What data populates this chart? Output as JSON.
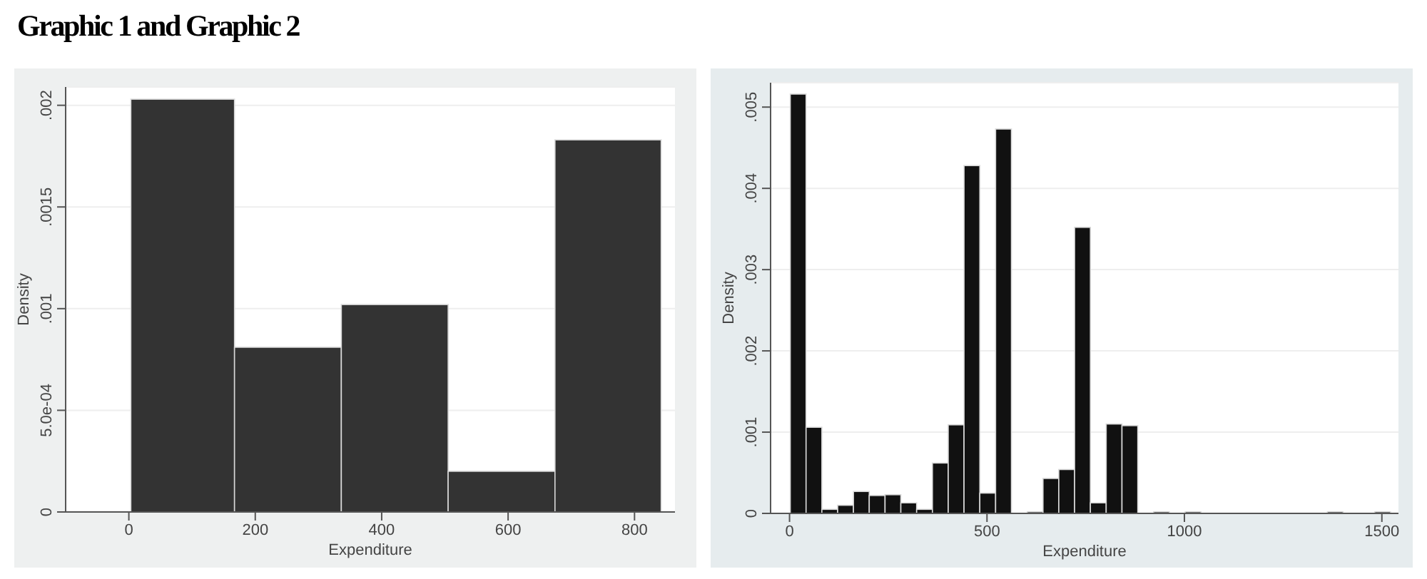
{
  "chart_data": [
    {
      "type": "histogram",
      "title": "Graphic 1 and Graphic 2",
      "xlabel": "Expenditure",
      "ylabel": "Density",
      "color": "#333333",
      "bins": [
        4,
        168,
        337,
        506,
        675,
        843
      ],
      "values": [
        0.00203,
        0.00081,
        0.00102,
        0.0002,
        0.00183
      ],
      "xlim": [
        -100,
        864
      ],
      "xticks": [
        0,
        200,
        400,
        600,
        800
      ],
      "ylim": [
        0,
        0.00209
      ],
      "yticks": [
        0,
        {
          "value": 0.0005,
          "label": "5.0e-04"
        },
        {
          "value": 0.001,
          "label": ".001"
        },
        {
          "value": 0.0015,
          "label": ".0015"
        },
        {
          "value": 0.002,
          "label": ".002"
        }
      ],
      "grid": "y"
    },
    {
      "type": "histogram",
      "xlabel": "Expenditure",
      "ylabel": "Density",
      "color": "#111111",
      "bins": [
        2,
        42,
        82,
        122,
        162,
        202,
        242,
        282,
        322,
        362,
        402,
        442,
        482,
        522,
        562,
        602,
        642,
        682,
        722,
        762,
        802,
        842,
        882,
        922,
        962,
        1002,
        1042,
        1082,
        1122,
        1162,
        1202,
        1242,
        1282,
        1322,
        1362,
        1402,
        1442,
        1482,
        1522
      ],
      "values": [
        0.00516,
        0.00106,
        5e-05,
        0.0001,
        0.00027,
        0.00022,
        0.00023,
        0.00013,
        5e-05,
        0.00062,
        0.00109,
        0.00428,
        0.00025,
        0.00473,
        0,
        2e-05,
        0.00043,
        0.00054,
        0.00352,
        0.00013,
        0.0011,
        0.00108,
        0,
        2e-05,
        0,
        2e-05,
        0,
        0,
        0,
        0,
        0,
        0,
        0,
        0,
        2e-05,
        0,
        0,
        2e-05
      ],
      "xlim": [
        -48,
        1542
      ],
      "xticks": [
        0,
        500,
        1000,
        1500
      ],
      "ylim": [
        0,
        0.0053
      ],
      "yticks": [
        0,
        {
          "value": 0.001,
          "label": ".001"
        },
        {
          "value": 0.002,
          "label": ".002"
        },
        {
          "value": 0.003,
          "label": ".003"
        },
        {
          "value": 0.004,
          "label": ".004"
        },
        {
          "value": 0.005,
          "label": ".005"
        }
      ],
      "grid": "y"
    }
  ]
}
